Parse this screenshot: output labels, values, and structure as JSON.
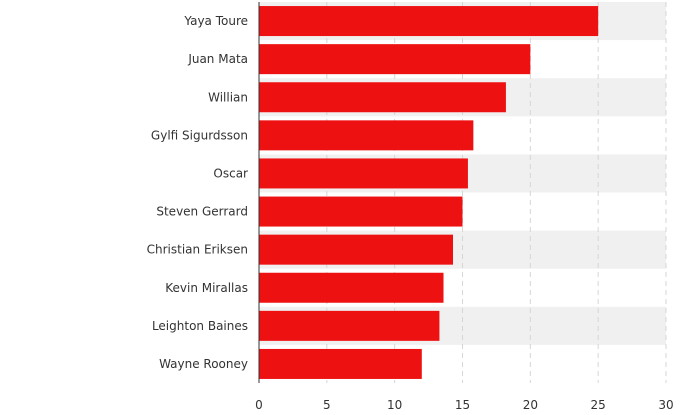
{
  "chart_data": {
    "type": "bar",
    "orientation": "horizontal",
    "categories": [
      "Yaya Toure",
      "Juan Mata",
      "Willian",
      "Gylfi Sigurdsson",
      "Oscar",
      "Steven Gerrard",
      "Christian Eriksen",
      "Kevin Mirallas",
      "Leighton Baines",
      "Wayne Rooney"
    ],
    "values": [
      25,
      20,
      18.2,
      15.8,
      15.4,
      15,
      14.3,
      13.6,
      13.3,
      12
    ],
    "title": "",
    "xlabel": "",
    "ylabel": "",
    "xlim": [
      0,
      30
    ],
    "x_ticks": [
      0,
      5,
      10,
      15,
      20,
      25,
      30
    ],
    "x_tick_labels": [
      "0",
      "5",
      "10",
      "15",
      "20",
      "25",
      "30"
    ],
    "grid": "vertical dashed",
    "alternating_row_bands": true,
    "legend": "none",
    "colors": {
      "bar": "#ee1111",
      "band": "#f0f0f0",
      "grid": "#d6d6d6",
      "axis": "#333333"
    }
  }
}
